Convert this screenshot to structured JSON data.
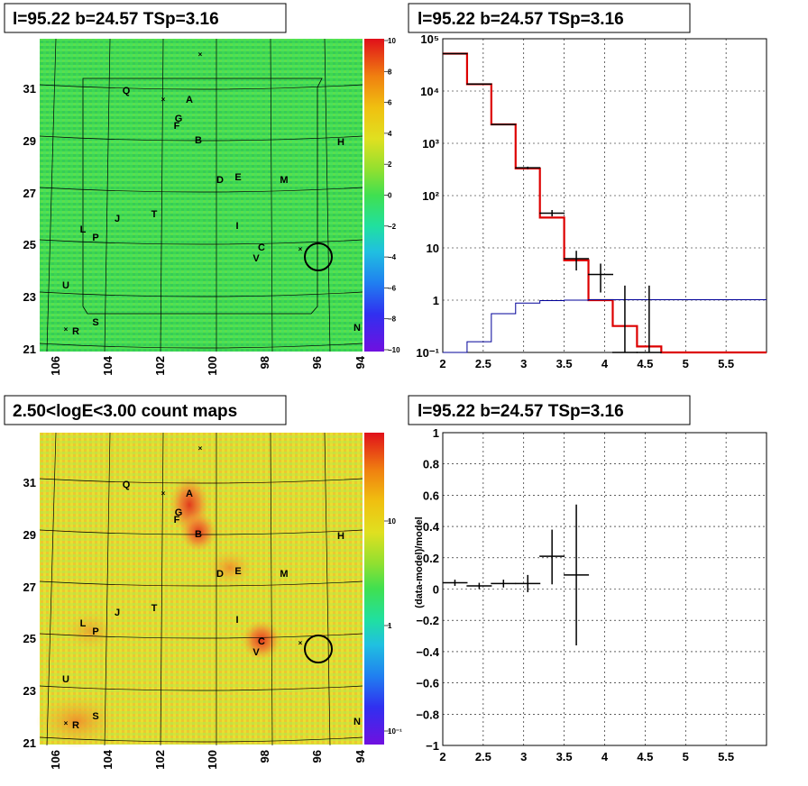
{
  "panels": {
    "top_left_title": "l=95.22 b=24.57 TSp=3.16",
    "top_right_title": "l=95.22 b=24.57 TSp=3.16",
    "bottom_left_title": "2.50<logE<3.00 count maps",
    "bottom_right_title": "l=95.22 b=24.57 TSp=3.16"
  },
  "maps": {
    "x_ticks": [
      "106",
      "104",
      "102",
      "100",
      "98",
      "96",
      "94"
    ],
    "y_ticks": [
      "31",
      "29",
      "27",
      "25",
      "23",
      "21"
    ],
    "sources": [
      "Q",
      "A",
      "G",
      "F",
      "B",
      "H",
      "D",
      "E",
      "M",
      "T",
      "J",
      "L",
      "P",
      "I",
      "C",
      "V",
      "U",
      "S",
      "R",
      "N"
    ],
    "top_scale": [
      "10",
      "8",
      "6",
      "4",
      "2",
      "0",
      "−2",
      "−4",
      "−6",
      "−8",
      "−10"
    ],
    "bottom_scale": [
      "10",
      "1",
      "10⁻¹"
    ]
  },
  "chart_data": [
    {
      "type": "line",
      "title": "l=95.22 b=24.57 TSp=3.16",
      "xlim": [
        2,
        6
      ],
      "ylim": [
        0.1,
        100000
      ],
      "yscale": "log",
      "grid": true,
      "x_ticks": [
        "2",
        "2.5",
        "3",
        "3.5",
        "4",
        "4.5",
        "5",
        "5.5"
      ],
      "y_ticks": [
        "10⁵",
        "10⁴",
        "10³",
        "10²",
        "10",
        "1",
        "10⁻¹"
      ],
      "series": [
        {
          "color": "#dd0000",
          "bins": [
            2,
            2.3,
            2.6,
            2.9,
            3.2,
            3.5,
            3.8,
            4.1,
            4.4,
            4.7,
            5,
            5.3,
            5.6,
            6
          ],
          "values": [
            52000,
            13500,
            2300,
            330,
            38,
            5.8,
            1.0,
            0.32,
            0.13,
            0.1,
            0.1,
            0.1,
            0.1
          ]
        },
        {
          "color": "#000000",
          "points": [
            {
              "x": 2.15,
              "y": 52000,
              "lo": 51000,
              "hi": 53000
            },
            {
              "x": 2.45,
              "y": 13600,
              "lo": 13400,
              "hi": 13800
            },
            {
              "x": 2.75,
              "y": 2290,
              "lo": 2250,
              "hi": 2340
            },
            {
              "x": 3.05,
              "y": 340,
              "lo": 322,
              "hi": 358
            },
            {
              "x": 3.35,
              "y": 46,
              "lo": 40,
              "hi": 53
            },
            {
              "x": 3.65,
              "y": 6.2,
              "lo": 3.7,
              "hi": 8.8
            },
            {
              "x": 3.95,
              "y": 3.1,
              "lo": 1.4,
              "hi": 5.0
            },
            {
              "x": 4.25,
              "y": 0.1,
              "lo": 0.1,
              "hi": 1.9
            },
            {
              "x": 4.55,
              "y": 0.1,
              "lo": 0.1,
              "hi": 1.9
            }
          ]
        },
        {
          "color": "#000099",
          "bins": [
            2,
            2.3,
            2.6,
            2.9,
            3.2,
            3.5,
            3.8,
            4.1,
            4.4,
            4.7,
            5,
            5.3,
            5.6,
            6
          ],
          "values": [
            0.05,
            0.16,
            0.55,
            0.88,
            0.98,
            1.0,
            1.02,
            1.02,
            1.02,
            1.02,
            1.02,
            1.02,
            1.02
          ]
        }
      ]
    },
    {
      "type": "scatter",
      "title": "l=95.22 b=24.57 TSp=3.16",
      "ylabel": "(data-model)/model",
      "xlim": [
        2,
        6
      ],
      "ylim": [
        -1,
        1
      ],
      "grid": true,
      "x_ticks": [
        "2",
        "2.5",
        "3",
        "3.5",
        "4",
        "4.5",
        "5",
        "5.5"
      ],
      "y_ticks": [
        "1",
        "0.8",
        "0.6",
        "0.4",
        "0.2",
        "0",
        "−0.2",
        "−0.4",
        "−0.6",
        "−0.8",
        "−1"
      ],
      "points": [
        {
          "x": 2.15,
          "y": 0.04,
          "lo": 0.02,
          "hi": 0.06
        },
        {
          "x": 2.45,
          "y": 0.02,
          "lo": 0.0,
          "hi": 0.04
        },
        {
          "x": 2.75,
          "y": 0.035,
          "lo": 0.01,
          "hi": 0.06
        },
        {
          "x": 3.05,
          "y": 0.035,
          "lo": -0.02,
          "hi": 0.09
        },
        {
          "x": 3.35,
          "y": 0.21,
          "lo": 0.03,
          "hi": 0.38
        },
        {
          "x": 3.65,
          "y": 0.09,
          "lo": -0.36,
          "hi": 0.54
        }
      ]
    }
  ]
}
